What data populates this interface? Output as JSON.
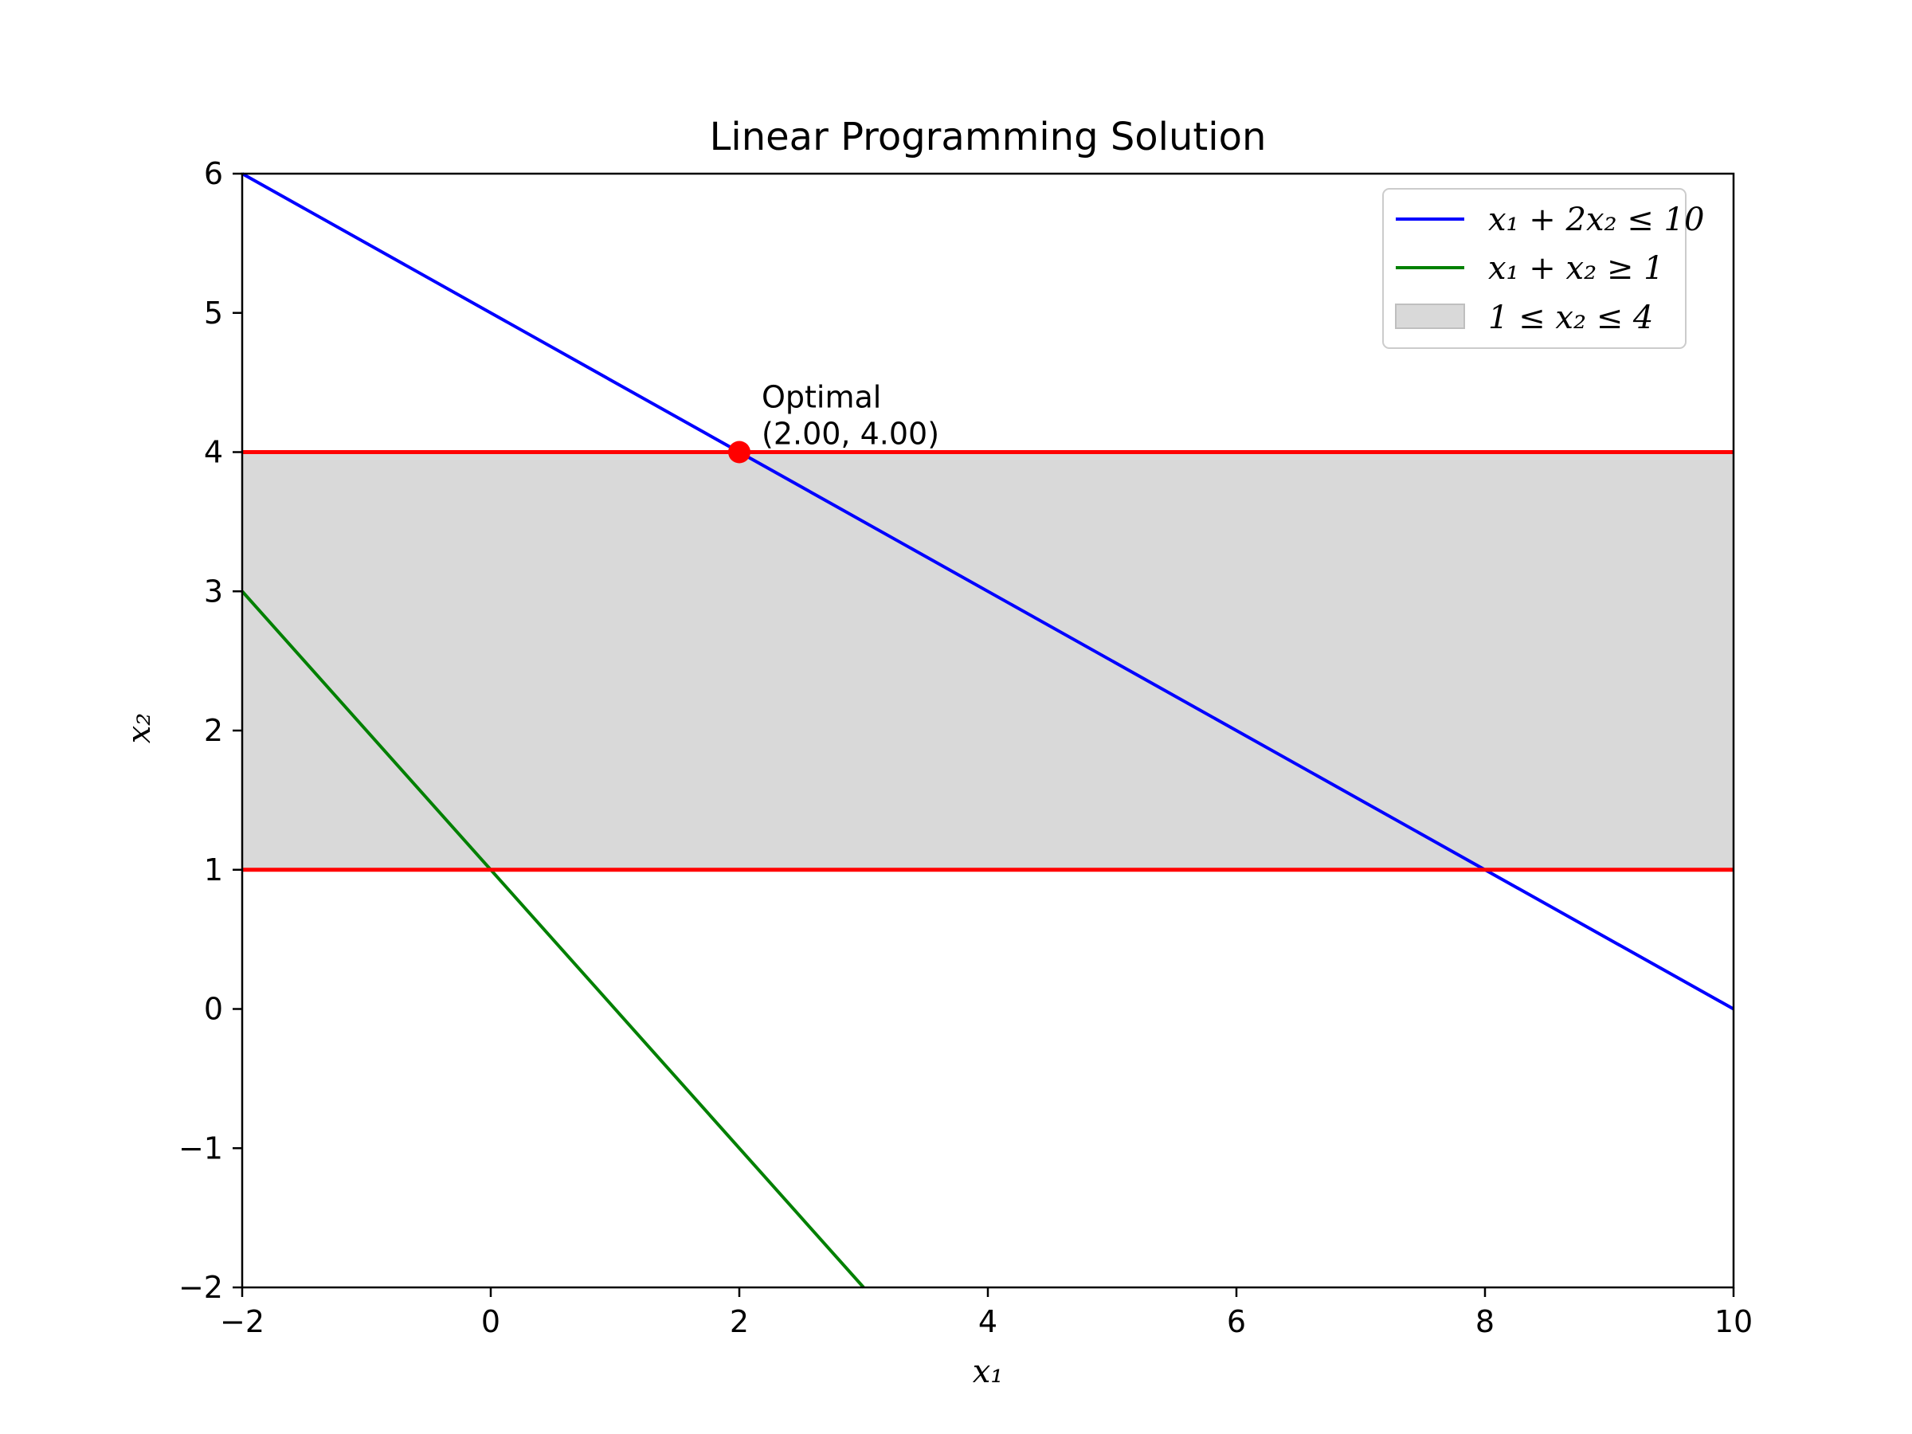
{
  "chart_data": {
    "type": "line",
    "title": "Linear Programming Solution",
    "xlabel": "x₁",
    "ylabel": "x₂",
    "xlim": [
      -2,
      10
    ],
    "ylim": [
      -2,
      6
    ],
    "xticks": [
      -2,
      0,
      2,
      4,
      6,
      8,
      10
    ],
    "yticks": [
      -2,
      -1,
      0,
      1,
      2,
      3,
      4,
      5,
      6
    ],
    "xtick_labels": [
      "−2",
      "0",
      "2",
      "4",
      "6",
      "8",
      "10"
    ],
    "ytick_labels": [
      "−2",
      "−1",
      "0",
      "1",
      "2",
      "3",
      "4",
      "5",
      "6"
    ],
    "grid": false,
    "legend_position": "top-right",
    "series": [
      {
        "name": "x₁ + 2x₂ ≤ 10",
        "kind": "line",
        "color": "#0000ff",
        "x": [
          -2,
          10
        ],
        "y": [
          6,
          0
        ]
      },
      {
        "name": "x₁ + x₂ ≥ 1",
        "kind": "line",
        "color": "#008000",
        "x": [
          -2,
          3
        ],
        "y": [
          3,
          -2
        ]
      },
      {
        "name": "1 ≤ x₂ ≤ 4",
        "kind": "band",
        "color": "#d9d9d9",
        "y_range": [
          1,
          4
        ]
      }
    ],
    "hlines": [
      {
        "y": 1,
        "color": "#ff0000"
      },
      {
        "y": 4,
        "color": "#ff0000"
      }
    ],
    "optimal_point": {
      "x": 2,
      "y": 4,
      "color": "#ff0000"
    },
    "annotation": {
      "line1": "Optimal",
      "line2": "(2.00, 4.00)"
    }
  }
}
